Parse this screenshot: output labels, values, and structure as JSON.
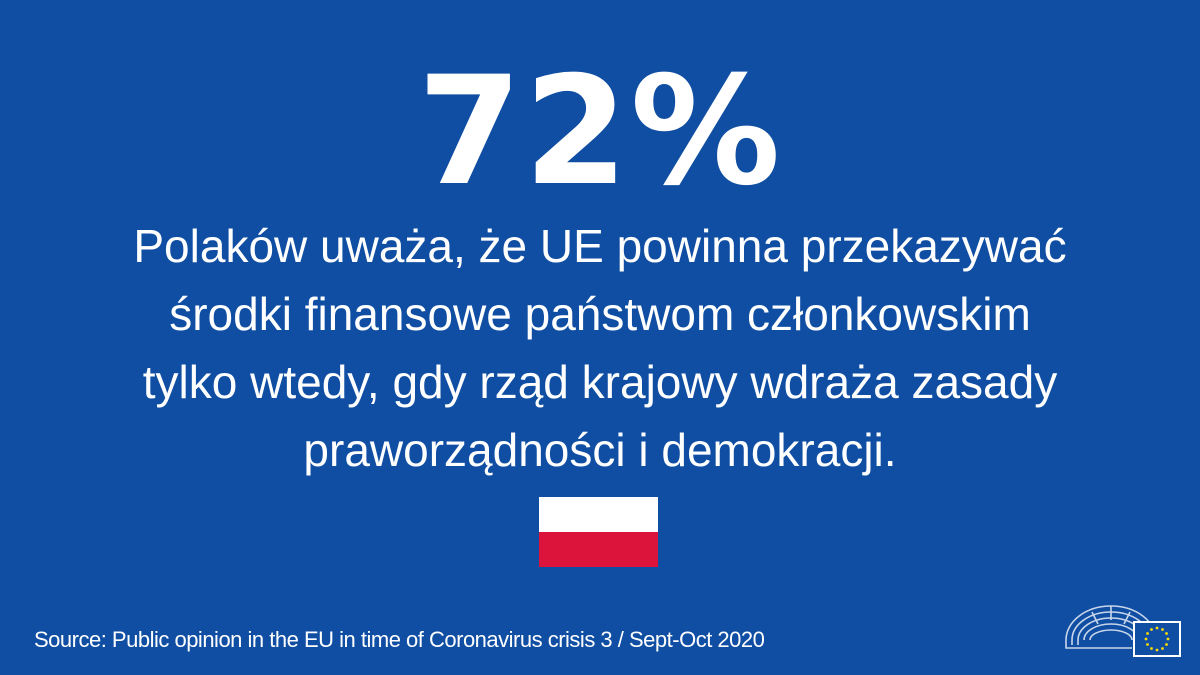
{
  "headline": {
    "stat": "72%"
  },
  "statement": {
    "lines": [
      "Polaków uważa, że UE powinna przekazywać",
      "środki finansowe państwom członkowskim",
      "tylko wtedy, gdy rząd krajowy wdraża zasady",
      "praworządności i demokracji."
    ]
  },
  "flag": {
    "icon": "poland-flag-icon",
    "colors": [
      "#ffffff",
      "#dc143c"
    ]
  },
  "footer": {
    "source": "Source: Public opinion in the EU in time of Coronavirus crisis 3 / Sept-Oct 2020",
    "logo_icon": "european-parliament-logo-icon"
  },
  "colors": {
    "background": "#0f4ea3",
    "text": "#ffffff",
    "eu_star": "#ffdd00"
  }
}
